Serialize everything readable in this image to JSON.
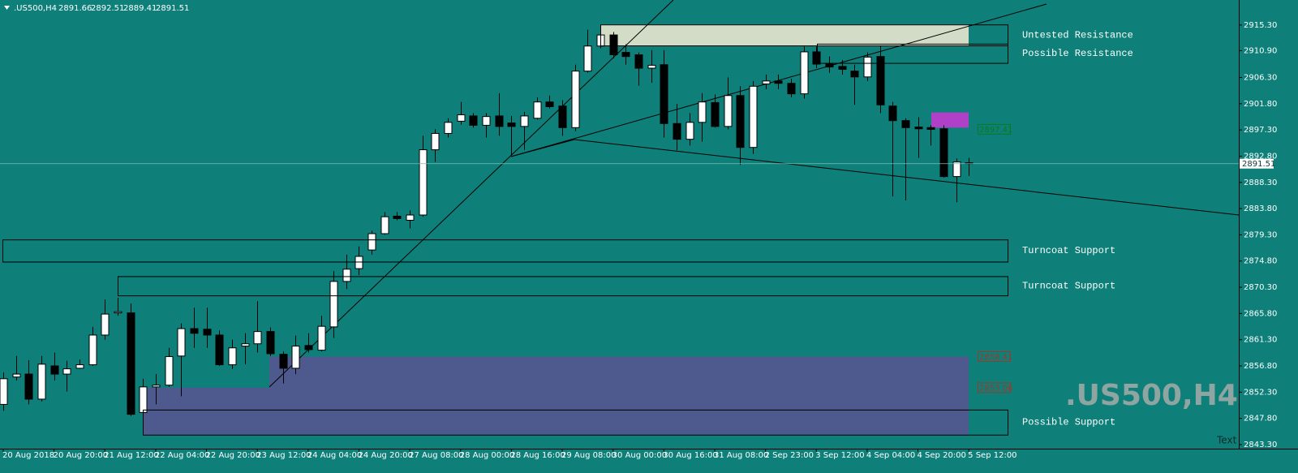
{
  "chart_data": {
    "type": "candlestick",
    "symbol": ".US500,H4",
    "corner_text": "Text",
    "categories": [
      "20 Aug 2018",
      null,
      null,
      null,
      "20 Aug 20:00",
      null,
      null,
      null,
      "21 Aug 12:00",
      null,
      null,
      null,
      "22 Aug 04:00",
      null,
      null,
      null,
      "22 Aug 20:00",
      null,
      null,
      null,
      "23 Aug 12:00",
      null,
      null,
      null,
      "24 Aug 04:00",
      null,
      null,
      null,
      "24 Aug 20:00",
      null,
      null,
      null,
      "27 Aug 08:00",
      null,
      null,
      null,
      "28 Aug 00:00",
      null,
      null,
      null,
      "28 Aug 16:00",
      null,
      null,
      null,
      "29 Aug 08:00",
      null,
      null,
      null,
      "30 Aug 00:00",
      null,
      null,
      null,
      "30 Aug 16:00",
      null,
      null,
      null,
      "31 Aug 08:00",
      null,
      null,
      null,
      "2 Sep 23:00",
      null,
      null,
      null,
      "3 Sep 12:00",
      null,
      null,
      null,
      "4 Sep 04:00",
      null,
      null,
      null,
      "4 Sep 20:00",
      null,
      null,
      null,
      "5 Sep 12:00"
    ],
    "open": [
      2850.2,
      2854.9,
      2855.4,
      2851.1,
      2856.8,
      2855.4,
      2856.4,
      2857.0,
      2862.1,
      2865.9,
      2865.9,
      2848.8,
      2853.2,
      2853.5,
      2858.5,
      2863.2,
      2863.1,
      2862.1,
      2857.0,
      2860.2,
      2860.6,
      2862.7,
      2858.8,
      2856.4,
      2860.3,
      2859.5,
      2863.5,
      2871.3,
      2873.5,
      2876.7,
      2879.5,
      2882.5,
      2881.8,
      2882.7,
      2893.9,
      2896.7,
      2898.8,
      2899.7,
      2898.1,
      2899.7,
      2898.5,
      2897.9,
      2899.3,
      2902.1,
      2901.4,
      2897.7,
      2907.4,
      2911.7,
      2913.6,
      2910.6,
      2910.2,
      2907.9,
      2908.5,
      2898.4,
      2895.7,
      2898.6,
      2902.0,
      2897.9,
      2903.2,
      2894.3,
      2905.2,
      2905.7,
      2905.3,
      2903.5,
      2910.7,
      2908.6,
      2908.2,
      2907.4,
      2906.4,
      2909.9,
      2901.4,
      2898.9,
      2897.8,
      2897.7,
      2897.5,
      2889.3,
      2891.66
    ],
    "high": [
      2855.7,
      2858.5,
      2857.8,
      2858.5,
      2859.1,
      2857.7,
      2857.9,
      2863.5,
      2868.2,
      2868.5,
      2867.5,
      2854.6,
      2855.4,
      2859.9,
      2864.1,
      2866.8,
      2866.8,
      2862.9,
      2861.3,
      2862.4,
      2867.9,
      2863.4,
      2859.3,
      2862.0,
      2862.4,
      2865.4,
      2873.1,
      2875.9,
      2877.3,
      2880.0,
      2883.2,
      2883.2,
      2883.5,
      2896.3,
      2897.4,
      2899.3,
      2902.1,
      2900.2,
      2900.2,
      2903.6,
      2899.7,
      2900.4,
      2902.9,
      2903.2,
      2902.4,
      2908.5,
      2914.5,
      2915.4,
      2914.1,
      2912.0,
      2910.6,
      2911.0,
      2911.0,
      2901.8,
      2900.2,
      2903.6,
      2903.4,
      2906.3,
      2904.8,
      2905.7,
      2906.8,
      2906.8,
      2906.1,
      2911.6,
      2911.6,
      2909.9,
      2909.3,
      2908.5,
      2910.6,
      2911.7,
      2902.1,
      2899.3,
      2899.5,
      2898.1,
      2898.1,
      2892.4,
      2892.51
    ],
    "low": [
      2849.1,
      2854.3,
      2850.2,
      2850.7,
      2854.3,
      2852.4,
      2856.3,
      2856.8,
      2861.3,
      2865.4,
      2848.2,
      2848.5,
      2850.2,
      2853.2,
      2851.6,
      2859.9,
      2859.9,
      2856.8,
      2856.3,
      2857.1,
      2859.1,
      2858.5,
      2853.8,
      2855.4,
      2859.1,
      2859.3,
      2861.6,
      2870.0,
      2872.4,
      2875.9,
      2879.3,
      2881.8,
      2880.4,
      2882.4,
      2891.8,
      2896.0,
      2898.2,
      2897.7,
      2896.0,
      2896.3,
      2892.9,
      2893.9,
      2899.1,
      2901.0,
      2896.3,
      2897.1,
      2907.1,
      2911.3,
      2909.6,
      2908.5,
      2904.9,
      2905.4,
      2896.0,
      2893.8,
      2894.6,
      2895.3,
      2897.7,
      2897.4,
      2891.3,
      2893.2,
      2904.3,
      2904.3,
      2902.9,
      2902.7,
      2907.9,
      2907.1,
      2906.8,
      2901.6,
      2905.7,
      2900.2,
      2885.9,
      2885.2,
      2892.5,
      2894.6,
      2889.1,
      2884.9,
      2889.41
    ],
    "close": [
      2854.6,
      2855.4,
      2851.1,
      2857.1,
      2855.4,
      2856.3,
      2857.0,
      2862.1,
      2865.7,
      2866.1,
      2848.5,
      2853.2,
      2853.5,
      2858.4,
      2863.2,
      2862.4,
      2862.1,
      2857.0,
      2859.9,
      2860.6,
      2862.7,
      2858.9,
      2856.4,
      2860.2,
      2859.6,
      2863.6,
      2871.3,
      2873.4,
      2875.6,
      2879.5,
      2882.4,
      2882.1,
      2882.7,
      2893.9,
      2896.7,
      2898.6,
      2899.9,
      2898.1,
      2899.6,
      2897.9,
      2897.9,
      2899.7,
      2902.1,
      2901.3,
      2897.7,
      2907.4,
      2911.7,
      2913.6,
      2910.2,
      2909.9,
      2907.9,
      2908.4,
      2898.4,
      2895.7,
      2898.6,
      2902.1,
      2897.9,
      2903.2,
      2894.3,
      2904.8,
      2905.7,
      2905.3,
      2903.5,
      2910.7,
      2908.6,
      2908.1,
      2907.7,
      2906.4,
      2909.8,
      2901.6,
      2898.9,
      2897.7,
      2897.5,
      2897.4,
      2889.3,
      2891.8,
      2891.51
    ],
    "up_color": "#ffffff",
    "down_color": "#000000",
    "ylim": [
      2842.6,
      2919.6
    ],
    "yticks": [
      {
        "value": 2915.3,
        "label": "2915.30"
      },
      {
        "value": 2910.9,
        "label": "2910.90"
      },
      {
        "value": 2906.3,
        "label": "2906.30"
      },
      {
        "value": 2901.8,
        "label": "2901.80"
      },
      {
        "value": 2897.3,
        "label": "2897.30"
      },
      {
        "value": 2892.8,
        "label": "2892.80"
      },
      {
        "value": 2888.3,
        "label": "2888.30"
      },
      {
        "value": 2883.8,
        "label": "2883.80"
      },
      {
        "value": 2879.3,
        "label": "2879.30"
      },
      {
        "value": 2874.8,
        "label": "2874.80"
      },
      {
        "value": 2870.3,
        "label": "2870.30"
      },
      {
        "value": 2865.8,
        "label": "2865.80"
      },
      {
        "value": 2861.3,
        "label": "2861.30"
      },
      {
        "value": 2856.8,
        "label": "2856.80"
      },
      {
        "value": 2852.3,
        "label": "2852.30"
      },
      {
        "value": 2847.8,
        "label": "2847.80"
      },
      {
        "value": 2843.3,
        "label": "2843.30"
      }
    ],
    "zones": [
      {
        "label": "Untested Resistance",
        "top": 2915.4,
        "bottom": 2911.8,
        "color": "#d3dcc6"
      },
      {
        "label": "Possible Resistance",
        "top": 2912.1,
        "bottom": 2908.8
      },
      {
        "label": "Turncoat Support",
        "top": 2878.5,
        "bottom": 2874.7
      },
      {
        "label": "Turncoat Support",
        "top": 2872.2,
        "bottom": 2868.9
      },
      {
        "label": "Possible Support",
        "top": 2849.3,
        "bottom": 2845.0
      },
      {
        "top": 2900.3,
        "bottom": 2897.7,
        "color": "#b040c8"
      }
    ],
    "levels": [
      {
        "value": 2897.41,
        "color": "#0b7a1c"
      },
      {
        "value": 2858.41,
        "color": "#9a3a2a"
      },
      {
        "value": 2853.06,
        "color": "#9a3a2a"
      }
    ],
    "support_fill": "#4e5a8e"
  }
}
